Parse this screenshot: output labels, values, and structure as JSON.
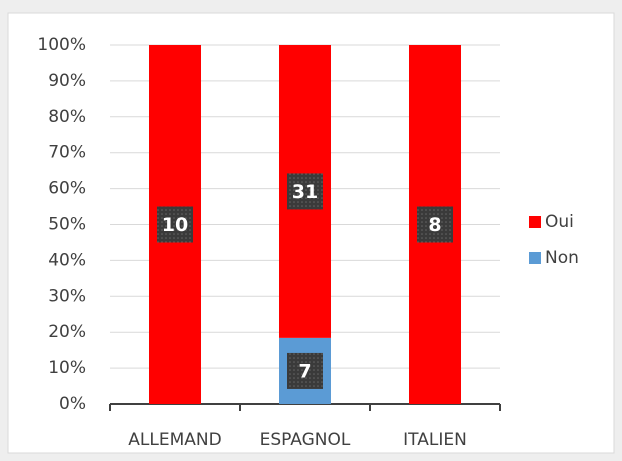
{
  "chart_data": {
    "type": "bar",
    "stacking": "percent",
    "categories": [
      "ALLEMAND",
      "ESPAGNOL",
      "ITALIEN"
    ],
    "series": [
      {
        "name": "Non",
        "color": "#5b9bd5",
        "values": [
          null,
          7,
          null
        ]
      },
      {
        "name": "Oui",
        "color": "#ff0000",
        "values": [
          10,
          31,
          8
        ]
      }
    ],
    "ylim": [
      0,
      100
    ],
    "yticks": [
      {
        "value": 0,
        "label": "0%"
      },
      {
        "value": 10,
        "label": "10%"
      },
      {
        "value": 20,
        "label": "20%"
      },
      {
        "value": 30,
        "label": "30%"
      },
      {
        "value": 40,
        "label": "40%"
      },
      {
        "value": 50,
        "label": "50%"
      },
      {
        "value": 60,
        "label": "60%"
      },
      {
        "value": 70,
        "label": "70%"
      },
      {
        "value": 80,
        "label": "80%"
      },
      {
        "value": 90,
        "label": "90%"
      },
      {
        "value": 100,
        "label": "100%"
      }
    ],
    "grid": true,
    "legend": "right"
  }
}
